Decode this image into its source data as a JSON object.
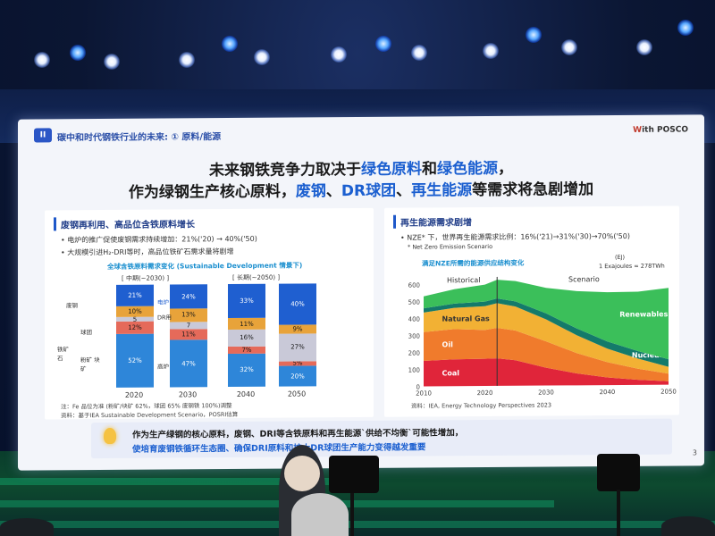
{
  "slide": {
    "header": {
      "badge": "II",
      "subtitle": "碳中和时代钢铁行业的未来: ① 原料/能源",
      "logo_w": "W",
      "logo_rest": "ith POSCO"
    },
    "title_line1": {
      "a": "未来钢铁竞争力取决于",
      "b": "绿色原料",
      "c": "和",
      "d": "绿色能源",
      "e": "，"
    },
    "title_line2": {
      "a": "作为绿钢生产核心原料，",
      "b": "废钢",
      "c": "、",
      "d": "DR球团",
      "e": "、",
      "f": "再生能源",
      "g": "等需求将急剧增加"
    },
    "left_panel": {
      "title": "废钢再利用、高品位含铁原料增长",
      "bullet1": "• 电炉的推广促使废钢需求持续增加：21%('20) → 40%('50)",
      "bullet2": "• 大规模引进H₂-DRI等时，高品位铁矿石需求量将剧增",
      "chart_caption": "全球含铁原料需求变化 (Sustainable Development 情景下)",
      "period_mid": "[ 中期(~2030) ]",
      "period_long": "[ 长期(~2050) ]",
      "row_labels": {
        "scrap": "废钢",
        "pellet": "球团",
        "iron_ore": "铁矿石",
        "fine": "粉矿 块矿"
      },
      "side_labels": {
        "eaf": "电炉",
        "dri": "DR用",
        "bf": "高炉"
      },
      "note1": "注：Fe 品位为准 (粉矿/块矿 62%，球团 65% 废钢铁 100%)调整",
      "note2": "资料：基于IEA Sustainable Development Scenario，POSRI估算"
    },
    "right_panel": {
      "title": "再生能源需求剧增",
      "bullet": "• NZE* 下，世界再生能源需求比例：16%('21)→31%('30)→70%('50)",
      "footnote": "* Net Zero Emission Scenario",
      "chart_caption": "满足NZE所需的能源供应结构变化",
      "unit": "(EJ)",
      "unit_note": "1 Exajoules = 278TWh",
      "historical": "Historical",
      "scenario": "Scenario",
      "source": "资料：IEA, Energy Technology Perspectives 2023"
    },
    "bottom": {
      "line1": "作为生产绿钢的核心原料，废钢、DRI等含铁原料和再生能源`供给不均衡`可能性增加，",
      "line2": "使培育废钢铁循环生态圈、确保DRI原料和扩大DR球团生产能力变得越发重要"
    },
    "page_number": "3"
  },
  "chart_data": [
    {
      "type": "bar",
      "title": "全球含铁原料需求变化 (Sustainable Development 情景下)",
      "categories": [
        "2020",
        "2030",
        "2040",
        "2050"
      ],
      "series": [
        {
          "name": "电炉",
          "values": [
            21,
            24,
            33,
            40
          ],
          "color": "#1f5fd0"
        },
        {
          "name": "DR用",
          "values": [
            10,
            13,
            11,
            9
          ],
          "color": "#e8a33a"
        },
        {
          "name": "球团",
          "values": [
            5,
            7,
            16,
            27
          ],
          "color": "#c9c9d8"
        },
        {
          "name": "高炉(球团)",
          "values": [
            12,
            11,
            7,
            5
          ],
          "color": "#e56a5a"
        },
        {
          "name": "粉矿/块矿",
          "values": [
            52,
            47,
            32,
            20
          ],
          "color": "#2e86d9"
        }
      ],
      "value_labels": [
        [
          "21%",
          "10%",
          "5",
          "12%",
          "52%"
        ],
        [
          "24%",
          "13%",
          "7",
          "11%",
          "47%"
        ],
        [
          "33%",
          "11%",
          "16%",
          "7%",
          "32%"
        ],
        [
          "40%",
          "9%",
          "27%",
          "5%",
          "20%"
        ]
      ]
    },
    {
      "type": "area",
      "title": "满足NZE所需的能源供应结构变化",
      "x": [
        2010,
        2015,
        2020,
        2022,
        2025,
        2030,
        2035,
        2040,
        2045,
        2050
      ],
      "ylim": [
        0,
        600
      ],
      "yticks": [
        0,
        100,
        200,
        300,
        400,
        500,
        600
      ],
      "xticks": [
        2010,
        2020,
        2030,
        2040,
        2050
      ],
      "series": [
        {
          "name": "Coal",
          "color": "#e0253a",
          "values": [
            150,
            158,
            160,
            162,
            150,
            105,
            70,
            45,
            30,
            20
          ]
        },
        {
          "name": "Oil",
          "color": "#f07b2c",
          "values": [
            170,
            178,
            170,
            180,
            175,
            155,
            120,
            90,
            65,
            45
          ]
        },
        {
          "name": "Natural Gas",
          "color": "#f2b134",
          "values": [
            115,
            125,
            140,
            145,
            142,
            130,
            105,
            80,
            60,
            40
          ]
        },
        {
          "name": "Nuclear",
          "color": "#147a6a",
          "values": [
            25,
            25,
            27,
            28,
            30,
            35,
            40,
            42,
            44,
            45
          ]
        },
        {
          "name": "Renewables",
          "color": "#3bbf5a",
          "values": [
            70,
            85,
            100,
            110,
            120,
            150,
            220,
            290,
            350,
            420
          ]
        }
      ]
    }
  ]
}
